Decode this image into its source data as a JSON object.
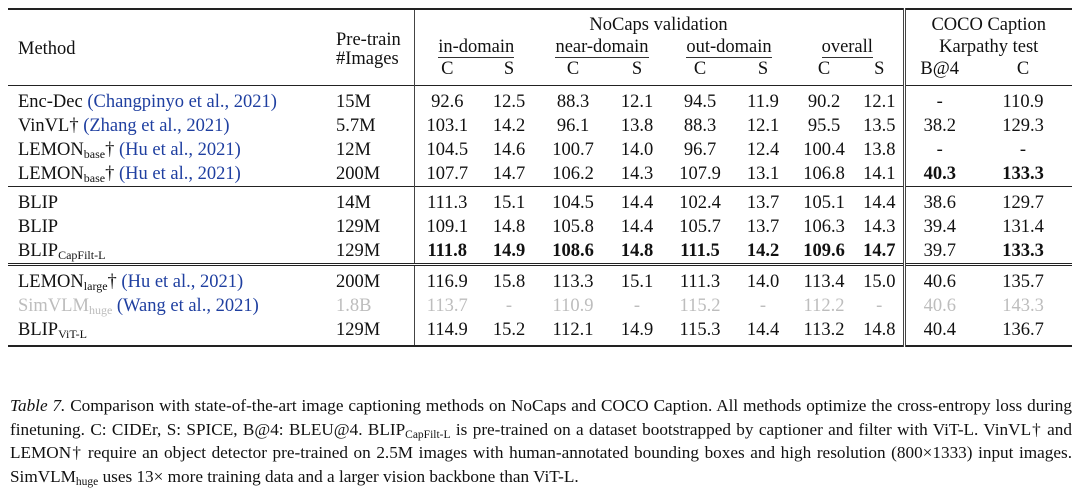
{
  "header": {
    "method": "Method",
    "pretrain_line1": "Pre-train",
    "pretrain_line2": "#Images",
    "nocaps": "NoCaps validation",
    "coco_line1": "COCO Caption",
    "coco_line2": "Karpathy test",
    "in_domain": "in-domain",
    "near_domain": "near-domain",
    "out_domain": "out-domain",
    "overall": "overall",
    "c": "C",
    "s": "S",
    "b4": "B@4"
  },
  "rows": [
    {
      "name": "Enc-Dec",
      "sub": "",
      "dagger": "",
      "cite": "(Changpinyo et al., 2021)",
      "pretrain": "15M",
      "v": [
        "92.6",
        "12.5",
        "88.3",
        "12.1",
        "94.5",
        "11.9",
        "90.2",
        "12.1",
        "-",
        "110.9"
      ]
    },
    {
      "name": "VinVL",
      "sub": "",
      "dagger": "†",
      "cite": "(Zhang et al., 2021)",
      "pretrain": "5.7M",
      "v": [
        "103.1",
        "14.2",
        "96.1",
        "13.8",
        "88.3",
        "12.1",
        "95.5",
        "13.5",
        "38.2",
        "129.3"
      ]
    },
    {
      "name": "LEMON",
      "sub": "base",
      "dagger": "†",
      "cite": "(Hu et al., 2021)",
      "pretrain": "12M",
      "v": [
        "104.5",
        "14.6",
        "100.7",
        "14.0",
        "96.7",
        "12.4",
        "100.4",
        "13.8",
        "-",
        "-"
      ]
    },
    {
      "name": "LEMON",
      "sub": "base",
      "dagger": "†",
      "cite": "(Hu et al., 2021)",
      "pretrain": "200M",
      "v": [
        "107.7",
        "14.7",
        "106.2",
        "14.3",
        "107.9",
        "13.1",
        "106.8",
        "14.1",
        "40.3",
        "133.3"
      ]
    },
    {
      "name": "BLIP",
      "sub": "",
      "dagger": "",
      "cite": "",
      "pretrain": "14M",
      "v": [
        "111.3",
        "15.1",
        "104.5",
        "14.4",
        "102.4",
        "13.7",
        "105.1",
        "14.4",
        "38.6",
        "129.7"
      ]
    },
    {
      "name": "BLIP",
      "sub": "",
      "dagger": "",
      "cite": "",
      "pretrain": "129M",
      "v": [
        "109.1",
        "14.8",
        "105.8",
        "14.4",
        "105.7",
        "13.7",
        "106.3",
        "14.3",
        "39.4",
        "131.4"
      ]
    },
    {
      "name": "BLIP",
      "sub": "CapFilt-L",
      "dagger": "",
      "cite": "",
      "pretrain": "129M",
      "v": [
        "111.8",
        "14.9",
        "108.6",
        "14.8",
        "111.5",
        "14.2",
        "109.6",
        "14.7",
        "39.7",
        "133.3"
      ]
    },
    {
      "name": "LEMON",
      "sub": "large",
      "dagger": "†",
      "cite": "(Hu et al., 2021)",
      "pretrain": "200M",
      "v": [
        "116.9",
        "15.8",
        "113.3",
        "15.1",
        "111.3",
        "14.0",
        "113.4",
        "15.0",
        "40.6",
        "135.7"
      ]
    },
    {
      "name": "SimVLM",
      "sub": "huge",
      "dagger": "",
      "cite": "(Wang et al., 2021)",
      "pretrain": "1.8B",
      "v": [
        "113.7",
        "-",
        "110.9",
        "-",
        "115.2",
        "-",
        "112.2",
        "-",
        "40.6",
        "143.3"
      ]
    },
    {
      "name": "BLIP",
      "sub": "ViT-L",
      "dagger": "",
      "cite": "",
      "pretrain": "129M",
      "v": [
        "114.9",
        "15.2",
        "112.1",
        "14.9",
        "115.3",
        "14.4",
        "113.2",
        "14.8",
        "40.4",
        "136.7"
      ]
    }
  ],
  "caption": {
    "label": "Table 7.",
    "text1": " Comparison with state-of-the-art image captioning methods on NoCaps and COCO Caption. All methods optimize the cross-entropy loss during finetuning. C: CIDEr, S: SPICE, B@4: BLEU@4. BLIP",
    "sub1": "CapFilt-L",
    "text2": " is pre-trained on a dataset bootstrapped by captioner and filter with ViT-L. VinVL† and LEMON† require an object detector pre-trained on 2.5M images with human-annotated bounding boxes and high resolution (800×1333) input images. SimVLM",
    "sub2": "huge",
    "text3": " uses 13× more training data and a larger vision backbone than ViT-L."
  }
}
